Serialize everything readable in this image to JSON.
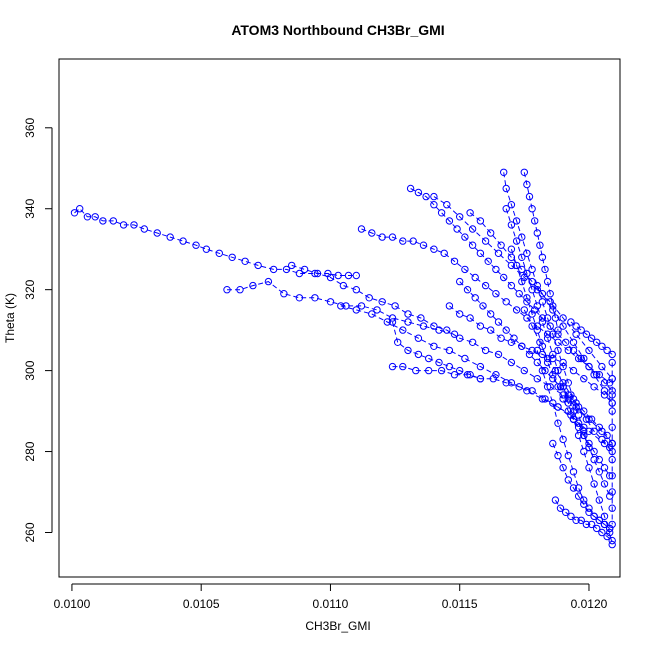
{
  "chart_data": {
    "type": "scatter",
    "title": "ATOM3 Northbound CH3Br_GMI",
    "xlabel": "CH3Br_GMI",
    "ylabel": "Theta (K)",
    "xlim": [
      0.00995,
      0.01212
    ],
    "ylim": [
      249,
      377
    ],
    "xticks": [
      0.01,
      0.0105,
      0.011,
      0.0115,
      0.012
    ],
    "xtick_labels": [
      "0.0100",
      "0.0105",
      "0.0110",
      "0.0115",
      "0.0120"
    ],
    "yticks": [
      260,
      280,
      300,
      320,
      340,
      360
    ],
    "ytick_labels": [
      "260",
      "280",
      "300",
      "320",
      "340",
      "360"
    ],
    "grid": false,
    "marker": "open-circle",
    "line": "dashed",
    "color": "#0000ff",
    "series": [
      {
        "x": [
          0.01001,
          0.01003,
          0.01006,
          0.01009,
          0.01012,
          0.01016,
          0.0102,
          0.01024,
          0.01028,
          0.01033,
          0.01038,
          0.01043,
          0.01048,
          0.01052,
          0.01057,
          0.01062,
          0.01067,
          0.01072,
          0.01078,
          0.01083,
          0.01088,
          0.01094,
          0.01099,
          0.01103,
          0.01107,
          0.0111
        ],
        "y": [
          339,
          340,
          338,
          338,
          337,
          337,
          336,
          336,
          335,
          334,
          333,
          332,
          331,
          330,
          329,
          328,
          327,
          326,
          325,
          325,
          324,
          324,
          324,
          323.5,
          323.5,
          323.5
        ]
      },
      {
        "x": [
          0.0106,
          0.01065,
          0.0107,
          0.01076,
          0.01082,
          0.01088,
          0.01094,
          0.011,
          0.01106,
          0.01112,
          0.01118,
          0.01124,
          0.0113,
          0.01136,
          0.01142,
          0.01148
        ],
        "y": [
          320,
          320,
          321,
          322,
          319,
          318,
          318,
          317,
          316,
          316,
          315,
          313,
          312,
          311,
          310,
          309
        ]
      },
      {
        "x": [
          0.01085,
          0.0109,
          0.01095,
          0.011,
          0.01105,
          0.0111,
          0.01115,
          0.0112,
          0.01125,
          0.0113,
          0.01135,
          0.0114,
          0.01145,
          0.0115,
          0.01155,
          0.0116,
          0.01165,
          0.0117,
          0.01175,
          0.0118,
          0.01185,
          0.0119,
          0.01195,
          0.012,
          0.01205,
          0.01209
        ],
        "y": [
          326,
          325,
          324,
          323,
          321,
          320,
          318,
          317,
          316,
          314,
          313,
          311,
          310,
          308,
          307,
          305,
          304,
          302,
          300,
          298,
          296,
          294,
          291,
          288,
          285,
          282
        ]
      },
      {
        "x": [
          0.01104,
          0.0111,
          0.01116,
          0.01122,
          0.01128,
          0.01134,
          0.0114,
          0.01146,
          0.01152,
          0.01158,
          0.01164,
          0.0117,
          0.01176,
          0.01182,
          0.01188,
          0.01194,
          0.012,
          0.01206,
          0.01209
        ],
        "y": [
          316,
          315,
          314,
          312,
          310,
          308,
          306,
          305,
          303,
          301,
          299,
          297,
          295,
          293,
          291,
          288,
          285,
          282,
          280
        ]
      },
      {
        "x": [
          0.01124,
          0.01128,
          0.01133,
          0.01138,
          0.01143,
          0.01148,
          0.01153,
          0.01158,
          0.01163,
          0.01168,
          0.01173,
          0.01178,
          0.01183,
          0.01188,
          0.01193,
          0.01198
        ],
        "y": [
          301,
          301,
          300,
          300,
          300,
          299,
          299,
          298,
          298,
          297,
          296,
          295,
          293,
          291,
          289,
          286
        ]
      },
      {
        "x": [
          0.01124,
          0.01126,
          0.0113,
          0.01134,
          0.01138,
          0.01142,
          0.01146,
          0.0115,
          0.01154,
          0.01158
        ],
        "y": [
          312,
          307,
          305,
          304,
          303,
          302,
          301,
          300,
          299,
          298
        ]
      },
      {
        "x": [
          0.01112,
          0.01116,
          0.0112,
          0.01124,
          0.01128,
          0.01132,
          0.01136,
          0.0114,
          0.01144,
          0.01148,
          0.01152,
          0.01156,
          0.0116,
          0.01164,
          0.01168,
          0.01172,
          0.01176,
          0.0118,
          0.01184,
          0.01188,
          0.01192,
          0.01196,
          0.012,
          0.01204,
          0.01208
        ],
        "y": [
          335,
          334,
          333,
          333,
          332,
          332,
          331,
          330,
          329,
          327,
          325,
          323,
          321,
          319,
          317,
          315,
          313,
          311,
          309,
          307,
          305,
          303,
          301,
          299,
          297
        ]
      },
      {
        "x": [
          0.01131,
          0.01134,
          0.01137,
          0.0114,
          0.01143,
          0.01146,
          0.01149,
          0.01152,
          0.01155,
          0.01158,
          0.01161,
          0.01164,
          0.01167,
          0.0117,
          0.01173,
          0.01176,
          0.01179,
          0.01182,
          0.01185,
          0.01188,
          0.01191,
          0.01194,
          0.01197,
          0.012,
          0.01203,
          0.01206,
          0.01209
        ],
        "y": [
          345,
          344,
          343,
          341,
          339,
          337,
          335,
          333,
          331,
          329,
          327,
          325,
          323,
          321,
          319,
          317,
          315,
          313,
          311,
          309,
          307,
          305,
          303,
          301,
          299,
          297,
          295
        ]
      },
      {
        "x": [
          0.0114,
          0.01145,
          0.0115,
          0.01155,
          0.0116,
          0.01165,
          0.0117,
          0.01175,
          0.0118,
          0.01185,
          0.0119,
          0.01195,
          0.012,
          0.01205,
          0.01209
        ],
        "y": [
          343,
          341,
          338,
          335,
          332,
          329,
          326,
          323,
          320,
          317,
          313,
          309,
          305,
          301,
          298
        ]
      },
      {
        "x": [
          0.01154,
          0.01158,
          0.01162,
          0.01166,
          0.0117,
          0.01174,
          0.01178,
          0.01182,
          0.01186,
          0.0119,
          0.01194,
          0.01198,
          0.01202,
          0.01206,
          0.01209
        ],
        "y": [
          339,
          337,
          334,
          331,
          328,
          325,
          322,
          319,
          315,
          311,
          307,
          303,
          299,
          295,
          292
        ]
      },
      {
        "x": [
          0.01167,
          0.01168,
          0.0117,
          0.01172,
          0.01174,
          0.01176,
          0.01178,
          0.0118,
          0.01182,
          0.01184,
          0.01186,
          0.01188,
          0.0119,
          0.01192,
          0.01194,
          0.01196,
          0.01198,
          0.012
        ],
        "y": [
          349,
          345,
          341,
          337,
          333,
          329,
          325,
          321,
          317,
          313,
          309,
          305,
          301,
          297,
          293,
          289,
          285,
          281
        ]
      },
      {
        "x": [
          0.01175,
          0.01176,
          0.01177,
          0.01178,
          0.01179,
          0.0118,
          0.01181,
          0.01182,
          0.01183,
          0.01184,
          0.01185,
          0.01186,
          0.01187,
          0.01188
        ],
        "y": [
          349,
          346,
          343,
          340,
          337,
          334,
          331,
          328,
          325,
          322,
          319,
          316,
          313,
          310
        ]
      },
      {
        "x": [
          0.01168,
          0.0117,
          0.01172,
          0.01174,
          0.01176,
          0.01178,
          0.0118,
          0.01182,
          0.01184,
          0.01186,
          0.01188,
          0.0119,
          0.01192,
          0.01194,
          0.01196,
          0.01198,
          0.012,
          0.01202,
          0.01204,
          0.01206,
          0.01208,
          0.01209
        ],
        "y": [
          340,
          336,
          332,
          328,
          324,
          320,
          316,
          312,
          308,
          304,
          300,
          296,
          292,
          288,
          284,
          280,
          276,
          272,
          268,
          264,
          260,
          257
        ]
      },
      {
        "x": [
          0.0118,
          0.01182,
          0.01184,
          0.01186,
          0.01188,
          0.0119,
          0.01192,
          0.01194,
          0.01196,
          0.01198,
          0.012,
          0.01202,
          0.01204,
          0.01206,
          0.01208
        ],
        "y": [
          305,
          300,
          296,
          292,
          287,
          283,
          279,
          275,
          271,
          268,
          266,
          264,
          263,
          262,
          261
        ]
      },
      {
        "x": [
          0.01186,
          0.01188,
          0.0119,
          0.01192,
          0.01194,
          0.01196,
          0.01198,
          0.012,
          0.01202,
          0.01204,
          0.01206,
          0.01208
        ],
        "y": [
          282,
          279,
          276,
          273,
          271,
          269,
          267,
          265,
          264,
          263,
          262,
          261
        ]
      },
      {
        "x": [
          0.01187,
          0.01189,
          0.01191,
          0.01193,
          0.01195,
          0.01197,
          0.01199,
          0.01201,
          0.01203,
          0.01205,
          0.01207,
          0.01209
        ],
        "y": [
          268,
          266,
          265,
          264,
          263,
          263,
          262,
          262,
          261,
          260,
          259,
          258
        ]
      },
      {
        "x": [
          0.01146,
          0.0115,
          0.01154,
          0.01158,
          0.01162,
          0.01166,
          0.0117,
          0.01174,
          0.01178,
          0.01182,
          0.01186,
          0.0119,
          0.01194,
          0.01198,
          0.01202,
          0.01206,
          0.01209
        ],
        "y": [
          316,
          314,
          313,
          311,
          310,
          308,
          307,
          306,
          305,
          304,
          303,
          302,
          300,
          298,
          296,
          294,
          292
        ]
      },
      {
        "x": [
          0.0115,
          0.01153,
          0.01156,
          0.01159,
          0.01162,
          0.01165,
          0.01168,
          0.01171,
          0.01174,
          0.01177,
          0.0118,
          0.01183,
          0.01186,
          0.01189,
          0.01192,
          0.01195,
          0.01198,
          0.01201,
          0.01204,
          0.01207,
          0.01209
        ],
        "y": [
          322,
          320,
          318,
          316,
          314,
          312,
          310,
          308,
          306,
          304,
          302,
          300,
          298,
          296,
          294,
          292,
          290,
          288,
          286,
          284,
          282
        ]
      },
      {
        "x": [
          0.0117,
          0.01172,
          0.01174,
          0.01176,
          0.01178,
          0.0118,
          0.01182,
          0.01184,
          0.01186,
          0.01188,
          0.0119,
          0.01192,
          0.01194,
          0.01196,
          0.01198,
          0.012,
          0.01202,
          0.01204,
          0.01206,
          0.01208
        ],
        "y": [
          330,
          326,
          322,
          318,
          314,
          310,
          306,
          302,
          299,
          296,
          293,
          290,
          288,
          286,
          284,
          282,
          280,
          278,
          276,
          274
        ]
      },
      {
        "x": [
          0.01175,
          0.01178,
          0.01181,
          0.01184,
          0.01187,
          0.0119,
          0.01193,
          0.01196,
          0.01199,
          0.01202,
          0.01205,
          0.01208
        ],
        "y": [
          315,
          311,
          307,
          303,
          300,
          297,
          294,
          291,
          288,
          285,
          283,
          281
        ]
      },
      {
        "x": [
          0.01193,
          0.01195,
          0.01197,
          0.01199,
          0.01201,
          0.01203,
          0.01205,
          0.01207,
          0.01209
        ],
        "y": [
          312,
          311,
          310,
          309,
          308,
          307,
          306,
          305,
          304
        ]
      },
      {
        "x": [
          0.01209,
          0.01209,
          0.01209,
          0.01209,
          0.01209,
          0.01209,
          0.01209,
          0.01209,
          0.01209,
          0.01209,
          0.01209
        ],
        "y": [
          302,
          298,
          294,
          290,
          286,
          282,
          278,
          274,
          270,
          266,
          262
        ]
      },
      {
        "x": [
          0.0119,
          0.01192,
          0.01194,
          0.01196,
          0.01198,
          0.012,
          0.01202,
          0.01204,
          0.01206,
          0.01208
        ],
        "y": [
          296,
          293,
          290,
          287,
          284,
          281,
          278,
          275,
          272,
          269
        ]
      }
    ]
  }
}
